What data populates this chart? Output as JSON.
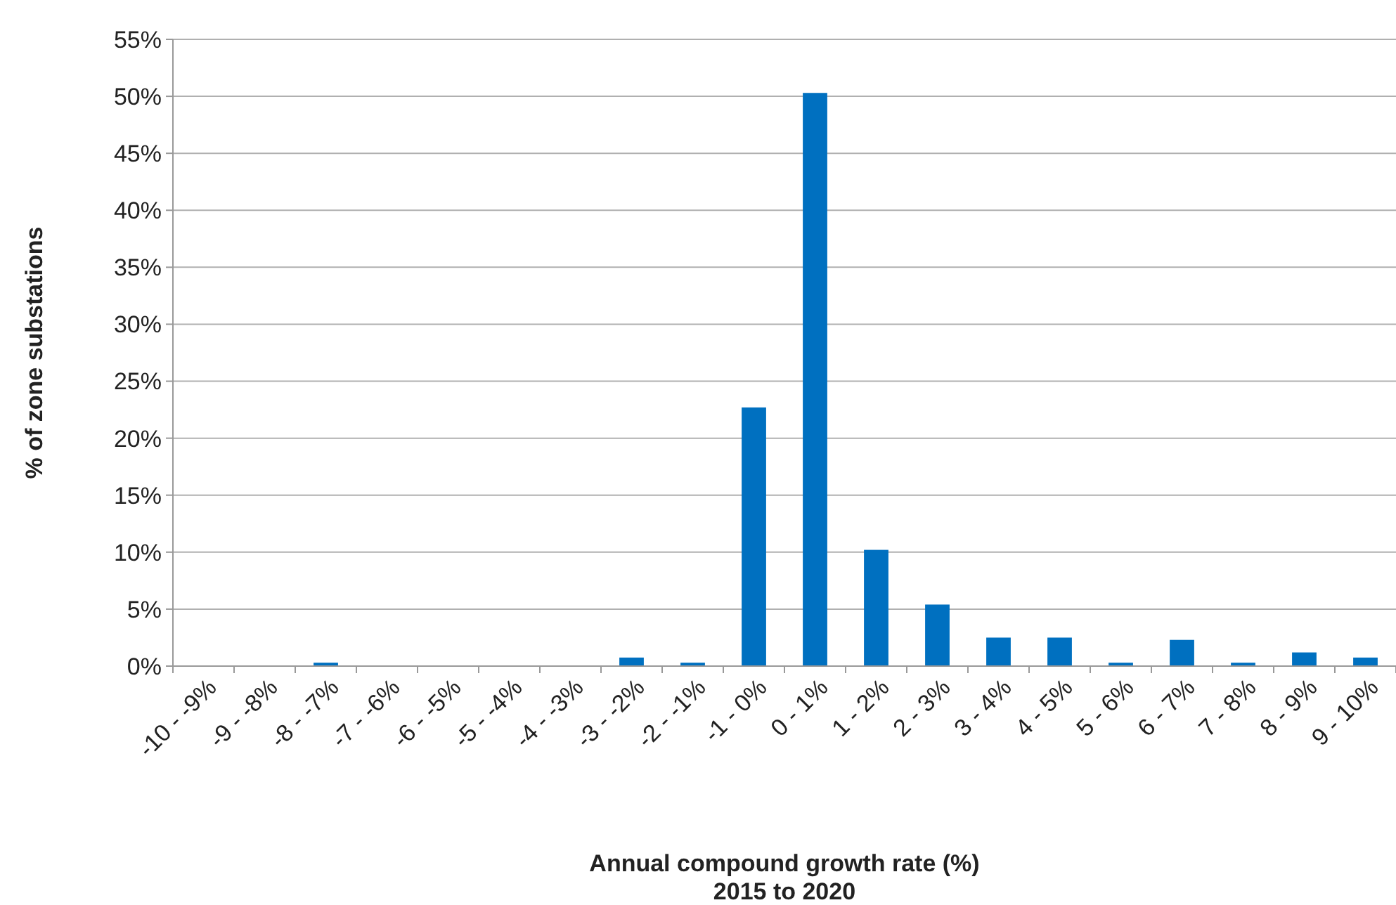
{
  "chart_data": {
    "type": "bar",
    "xlabel": "Annual compound growth rate (%)\n2015 to 2020",
    "ylabel": "% of zone substations",
    "categories": [
      "-10 - -9%",
      "-9 - -8%",
      "-8 - -7%",
      "-7 - -6%",
      "-6 - -5%",
      "-5 - -4%",
      "-4 - -3%",
      "-3 - -2%",
      "-2 - -1%",
      "-1 - 0%",
      "0 - 1%",
      "1 - 2%",
      "2 - 3%",
      "3 - 4%",
      "4 - 5%",
      "5 - 6%",
      "6 - 7%",
      "7 - 8%",
      "8 - 9%",
      "9 - 10%"
    ],
    "values": [
      0,
      0,
      0.3,
      0,
      0,
      0,
      0,
      0.75,
      0.3,
      22.7,
      50.3,
      10.2,
      5.4,
      2.5,
      2.5,
      0.3,
      2.3,
      0.3,
      1.2,
      0.75
    ],
    "color": "#0070c0",
    "ylim": [
      0,
      55
    ],
    "yticks": [
      {
        "value": 0,
        "label": "0%"
      },
      {
        "value": 5,
        "label": "5%"
      },
      {
        "value": 10,
        "label": "10%"
      },
      {
        "value": 15,
        "label": "15%"
      },
      {
        "value": 20,
        "label": "20%"
      },
      {
        "value": 25,
        "label": "25%"
      },
      {
        "value": 30,
        "label": "30%"
      },
      {
        "value": 35,
        "label": "35%"
      },
      {
        "value": 40,
        "label": "40%"
      },
      {
        "value": 45,
        "label": "45%"
      },
      {
        "value": 50,
        "label": "50%"
      },
      {
        "value": 55,
        "label": "55%"
      }
    ],
    "grid": "y"
  }
}
